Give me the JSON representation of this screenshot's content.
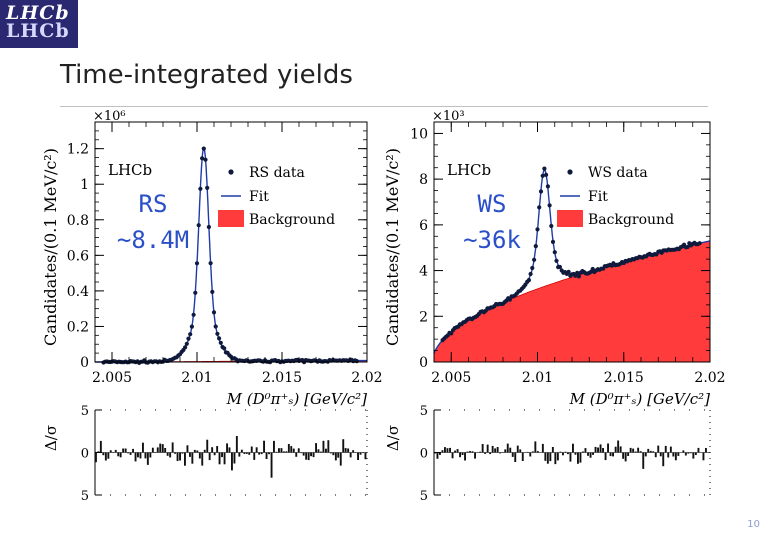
{
  "logo": {
    "line1": "LHCb",
    "line2": "LHCb"
  },
  "slide": {
    "title": "Time-integrated yields",
    "page_number": "10"
  },
  "chart_data": [
    {
      "type": "scatter",
      "id": "rs",
      "experiment_label": "LHCb",
      "annotation_lines": [
        "RS",
        "~8.4M"
      ],
      "legend": {
        "data": "RS data",
        "fit": "Fit",
        "background": "Background"
      },
      "scale_label": "×10⁶",
      "ylabel": "Candidates/(0.1 MeV/c²)",
      "xlabel": "M (D⁰π⁺ₛ) [GeV/c²]",
      "xlim": [
        2.004,
        2.02
      ],
      "ylim": [
        0,
        1.35
      ],
      "xticks": [
        "2.005",
        "2.01",
        "2.015",
        "2.02"
      ],
      "yticks": [
        "0",
        "0.2",
        "0.4",
        "0.6",
        "0.8",
        "1",
        "1.2"
      ],
      "peak": {
        "mean": 2.0104,
        "height": 1.2,
        "sigma": 0.00028,
        "tail": 0.00075
      },
      "background": {
        "max": 0.008
      },
      "pull_ylabel": "Δ/σ",
      "pull_yticks": [
        "5",
        "0",
        "5"
      ],
      "pull_ylim": [
        -5,
        5
      ]
    },
    {
      "type": "scatter",
      "id": "ws",
      "experiment_label": "LHCb",
      "annotation_lines": [
        "WS",
        "~36k"
      ],
      "legend": {
        "data": "WS data",
        "fit": "Fit",
        "background": "Background"
      },
      "scale_label": "×10³",
      "ylabel": "Candidates/(0.1 MeV/c²)",
      "xlabel": "M (D⁰π⁺ₛ) [GeV/c²]",
      "xlim": [
        2.004,
        2.02
      ],
      "ylim": [
        0,
        10.5
      ],
      "xticks": [
        "2.005",
        "2.01",
        "2.015",
        "2.02"
      ],
      "yticks": [
        "0",
        "2",
        "4",
        "6",
        "8",
        "10"
      ],
      "peak": {
        "mean": 2.0104,
        "height": 5.1,
        "sigma": 0.0003,
        "tail": 0.0008
      },
      "background": {
        "x0": 2.0039,
        "scale": 5.3,
        "power": 0.52
      },
      "pull_ylabel": "Δ/σ",
      "pull_yticks": [
        "5",
        "0",
        "5"
      ],
      "pull_ylim": [
        -5,
        5
      ]
    }
  ]
}
